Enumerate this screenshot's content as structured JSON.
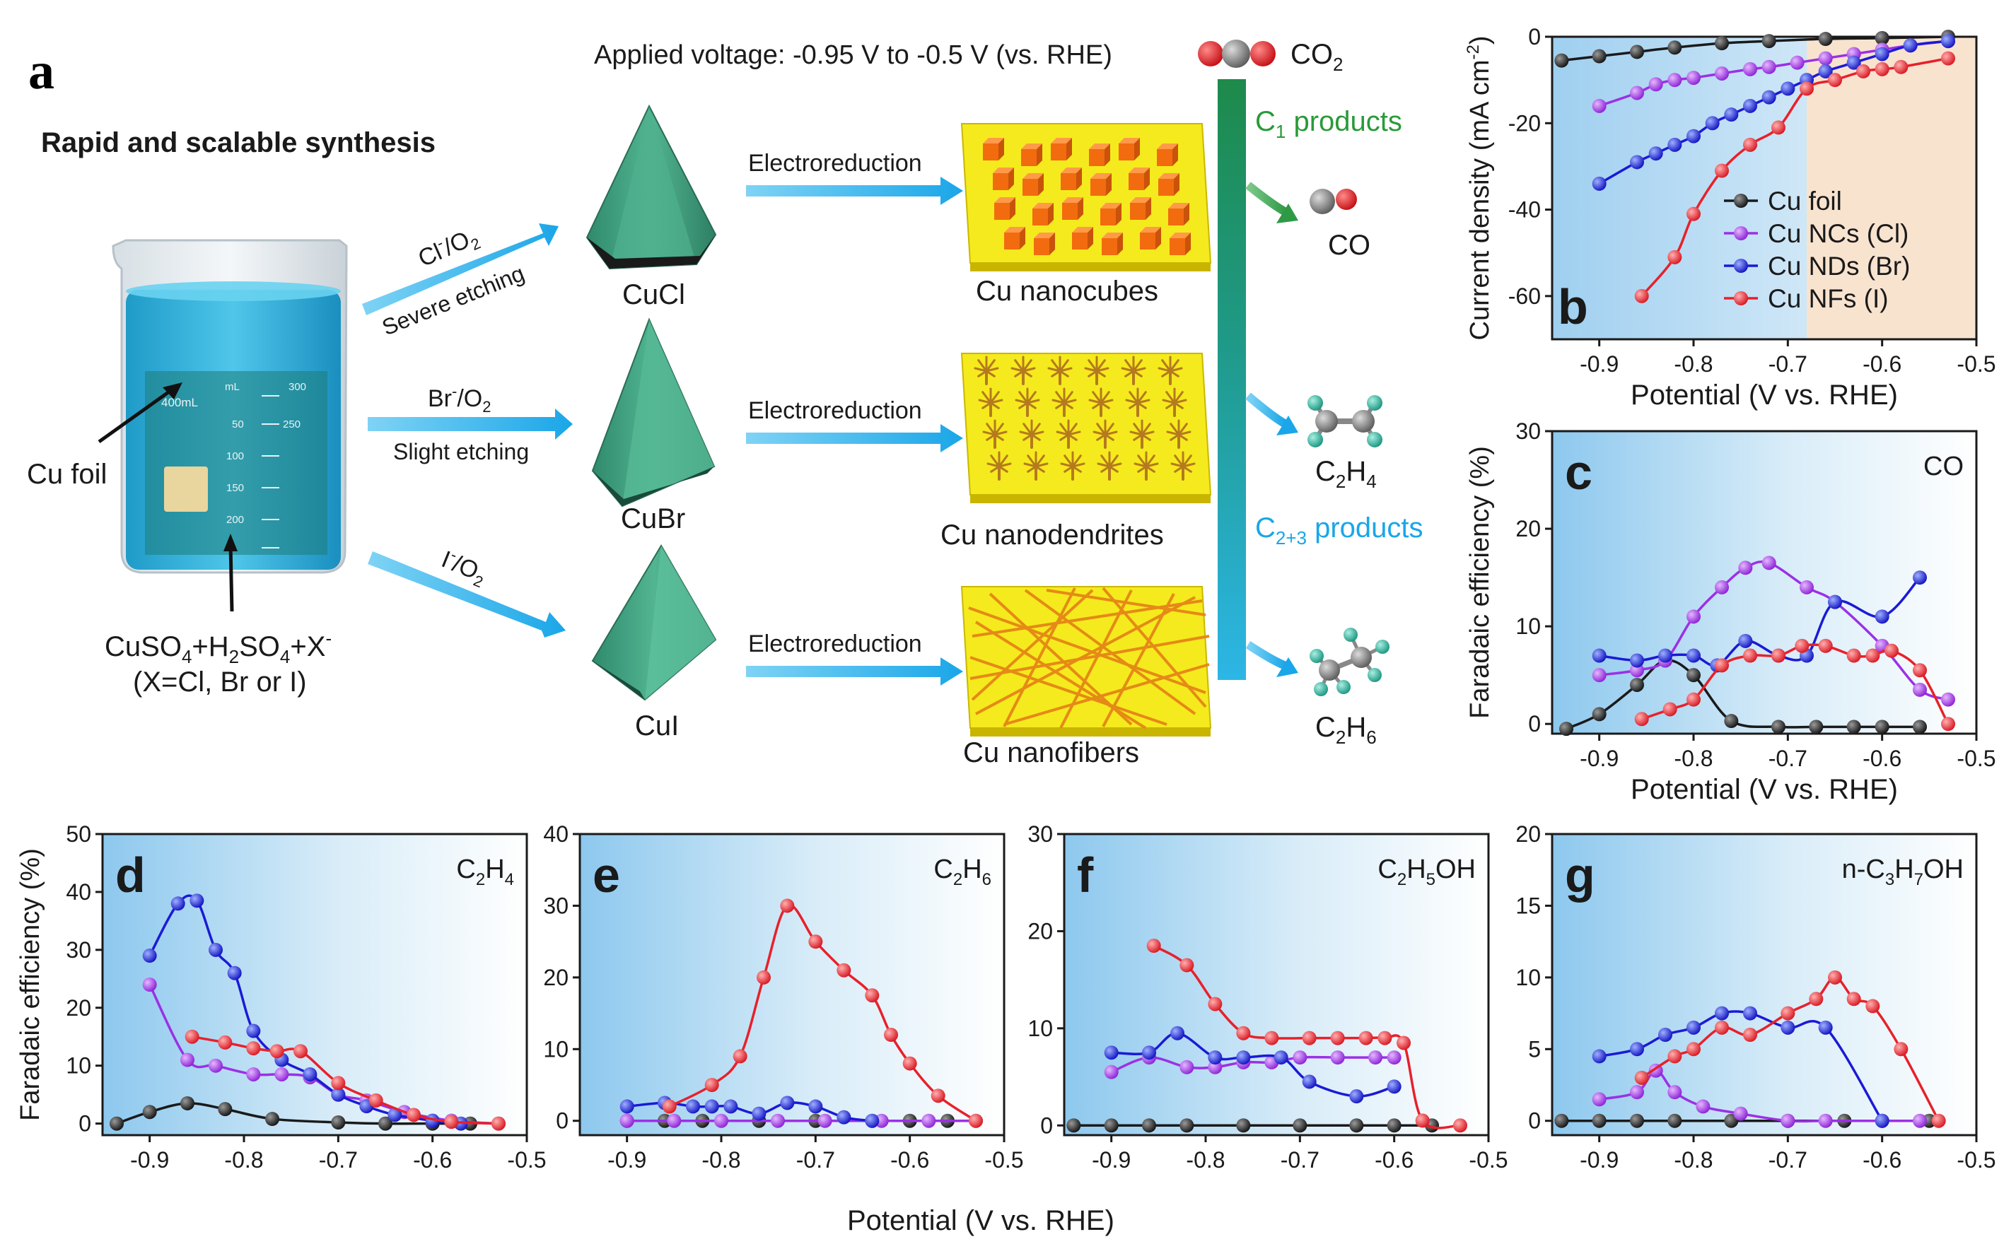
{
  "colors": {
    "black": "#1a1a1a",
    "purple": "#9b30e6",
    "blue": "#1a1ad6",
    "red": "#e8202a",
    "gradient_blue": "#9fcff0",
    "peach": "#f8e3cf",
    "arrow_blue": "#39b4ea",
    "crystal": "#45a585",
    "substrate": "#f5ea1d"
  },
  "panel_a": {
    "label": "a",
    "title": "Rapid and scalable synthesis",
    "applied_voltage": "Applied voltage: -0.95 V to -0.5 V (vs. RHE)",
    "co2_label": "CO",
    "co2_sub": "2",
    "c1_products": "C",
    "c1_sub": "1",
    "c1_suffix": " products",
    "c23_products": "C",
    "c23_sub": "2+3",
    "c23_suffix": " products",
    "cu_foil": "Cu foil",
    "electrolyte_line1": "CuSO",
    "electrolyte_4": "4",
    "electrolyte_plus1": "+H",
    "electrolyte_2": "2",
    "electrolyte_so": "SO",
    "electrolyte_4b": "4",
    "electrolyte_x": "+X",
    "electrolyte_minus": "-",
    "electrolyte_line2": "(X=Cl, Br or I)",
    "beaker_400": "400mL",
    "beaker_ml": "mL",
    "beaker_300": "300",
    "beaker_ticks": [
      "50",
      "100",
      "150",
      "200",
      "250"
    ],
    "routes": [
      {
        "ion": "Cl",
        "ion_sup": "-",
        "ion_suffix": "/O",
        "ion_sub": "2",
        "etching": "Severe etching",
        "precursor": "CuCl",
        "process": "Electroreduction",
        "product": "Cu nanocubes"
      },
      {
        "ion": "Br",
        "ion_sup": "-",
        "ion_suffix": "/O",
        "ion_sub": "2",
        "etching": "Slight etching",
        "precursor": "CuBr",
        "process": "Electroreduction",
        "product": "Cu nanodendrites"
      },
      {
        "ion": "I",
        "ion_sup": "-",
        "ion_suffix": "/O",
        "ion_sub": "2",
        "etching": "",
        "precursor": "CuI",
        "process": "Electroreduction",
        "product": "Cu nanofibers"
      }
    ],
    "products": [
      {
        "name": "CO",
        "sub": ""
      },
      {
        "name": "C",
        "sub": "2",
        "name2": "H",
        "sub2": "4"
      },
      {
        "name": "C",
        "sub": "2",
        "name2": "H",
        "sub2": "6"
      }
    ]
  },
  "chart_data": [
    {
      "panel": "b",
      "type": "line",
      "xlabel": "Potential (V vs. RHE)",
      "ylabel": "Current density (mA cm",
      "ylabel_sup": "-2",
      "ylabel_end": ")",
      "xlim": [
        -0.95,
        -0.5
      ],
      "ylim": [
        -70,
        0
      ],
      "xticks": [
        -0.9,
        -0.8,
        -0.7,
        -0.6,
        -0.5
      ],
      "xtick_labels": [
        "-0.9",
        "-0.8",
        "-0.7",
        "-0.6",
        "-0.5"
      ],
      "yticks": [
        -60,
        -40,
        -20,
        0
      ],
      "ytick_labels": [
        "-60",
        "-40",
        "-20",
        "0"
      ],
      "shade_split": -0.68,
      "series": [
        {
          "name": "Cu foil",
          "color": "black",
          "x": [
            -0.94,
            -0.9,
            -0.86,
            -0.82,
            -0.77,
            -0.72,
            -0.66,
            -0.6,
            -0.53
          ],
          "y": [
            -5.5,
            -4.5,
            -3.5,
            -2.5,
            -1.5,
            -1,
            -0.5,
            -0.3,
            0
          ]
        },
        {
          "name": "Cu NCs (Cl)",
          "color": "purple",
          "x": [
            -0.9,
            -0.86,
            -0.84,
            -0.82,
            -0.8,
            -0.77,
            -0.74,
            -0.72,
            -0.69,
            -0.66,
            -0.63,
            -0.6,
            -0.57,
            -0.53
          ],
          "y": [
            -16,
            -13,
            -11,
            -10,
            -9.5,
            -8.5,
            -7.5,
            -7,
            -6,
            -5,
            -4,
            -3,
            -2,
            -1
          ]
        },
        {
          "name": "Cu NDs (Br)",
          "color": "blue",
          "x": [
            -0.9,
            -0.86,
            -0.84,
            -0.82,
            -0.8,
            -0.78,
            -0.76,
            -0.74,
            -0.72,
            -0.7,
            -0.68,
            -0.66,
            -0.63,
            -0.6,
            -0.57,
            -0.53
          ],
          "y": [
            -34,
            -29,
            -27,
            -25,
            -23,
            -20,
            -18,
            -16,
            -14,
            -12,
            -10,
            -8,
            -6,
            -4,
            -2,
            -1
          ]
        },
        {
          "name": "Cu NFs (I)",
          "color": "red",
          "x": [
            -0.855,
            -0.82,
            -0.8,
            -0.77,
            -0.74,
            -0.71,
            -0.68,
            -0.65,
            -0.62,
            -0.6,
            -0.58,
            -0.53
          ],
          "y": [
            -60,
            -51,
            -41,
            -31,
            -25,
            -21,
            -12,
            -10,
            -8,
            -7.5,
            -7,
            -5
          ]
        }
      ]
    },
    {
      "panel": "c",
      "type": "line",
      "product": "CO",
      "xlabel": "Potential (V vs. RHE)",
      "ylabel": "Faradaic efficiency (%)",
      "xlim": [
        -0.95,
        -0.5
      ],
      "ylim": [
        -1,
        30
      ],
      "xticks": [
        -0.9,
        -0.8,
        -0.7,
        -0.6,
        -0.5
      ],
      "xtick_labels": [
        "-0.9",
        "-0.8",
        "-0.7",
        "-0.6",
        "-0.5"
      ],
      "yticks": [
        0,
        10,
        20,
        30
      ],
      "ytick_labels": [
        "0",
        "10",
        "20",
        "30"
      ],
      "series": [
        {
          "name": "Cu foil",
          "color": "black",
          "x": [
            -0.935,
            -0.9,
            -0.86,
            -0.83,
            -0.8,
            -0.76,
            -0.71,
            -0.67,
            -0.63,
            -0.6,
            -0.56
          ],
          "y": [
            -0.5,
            1,
            4,
            6.5,
            5,
            0.3,
            -0.3,
            -0.3,
            -0.3,
            -0.3,
            -0.3
          ]
        },
        {
          "name": "Cu NCs (Cl)",
          "color": "purple",
          "x": [
            -0.9,
            -0.86,
            -0.83,
            -0.8,
            -0.77,
            -0.745,
            -0.72,
            -0.68,
            -0.65,
            -0.6,
            -0.56,
            -0.53
          ],
          "y": [
            5,
            5.5,
            6.5,
            11,
            14,
            16,
            16.5,
            14,
            12.5,
            8,
            3.5,
            2.5
          ]
        },
        {
          "name": "Cu NDs (Br)",
          "color": "blue",
          "x": [
            -0.9,
            -0.86,
            -0.83,
            -0.8,
            -0.775,
            -0.745,
            -0.71,
            -0.68,
            -0.65,
            -0.6,
            -0.56
          ],
          "y": [
            7,
            6.5,
            7,
            7,
            6,
            8.5,
            7,
            7,
            12.5,
            11,
            15
          ]
        },
        {
          "name": "Cu NFs (I)",
          "color": "red",
          "x": [
            -0.855,
            -0.825,
            -0.8,
            -0.77,
            -0.74,
            -0.71,
            -0.685,
            -0.66,
            -0.63,
            -0.61,
            -0.59,
            -0.56,
            -0.53
          ],
          "y": [
            0.5,
            1.5,
            2.5,
            6,
            7,
            7,
            8,
            8,
            7,
            7,
            7.5,
            5.5,
            0
          ]
        }
      ]
    },
    {
      "panel": "d",
      "type": "line",
      "product": "C",
      "product_sub": "2",
      "product_mid": "H",
      "product_sub2": "4",
      "xlabel": "",
      "ylabel": "Faradaic efficiency (%)",
      "xlim": [
        -0.95,
        -0.5
      ],
      "ylim": [
        -2,
        50
      ],
      "xticks": [
        -0.9,
        -0.8,
        -0.7,
        -0.6,
        -0.5
      ],
      "xtick_labels": [
        "-0.9",
        "-0.8",
        "-0.7",
        "-0.6",
        "-0.5"
      ],
      "yticks": [
        0,
        10,
        20,
        30,
        40,
        50
      ],
      "ytick_labels": [
        "0",
        "10",
        "20",
        "30",
        "40",
        "50"
      ],
      "series": [
        {
          "name": "Cu foil",
          "color": "black",
          "x": [
            -0.935,
            -0.9,
            -0.86,
            -0.82,
            -0.77,
            -0.7,
            -0.65,
            -0.6,
            -0.56
          ],
          "y": [
            0,
            2,
            3.5,
            2.5,
            0.8,
            0.2,
            0,
            0,
            0
          ]
        },
        {
          "name": "Cu NCs (Cl)",
          "color": "purple",
          "x": [
            -0.9,
            -0.86,
            -0.83,
            -0.79,
            -0.76,
            -0.73,
            -0.7,
            -0.67,
            -0.63,
            -0.58,
            -0.53
          ],
          "y": [
            24,
            11,
            10,
            8.5,
            8.5,
            8,
            5,
            4,
            2,
            0.5,
            0
          ]
        },
        {
          "name": "Cu NDs (Br)",
          "color": "blue",
          "x": [
            -0.9,
            -0.87,
            -0.85,
            -0.83,
            -0.81,
            -0.79,
            -0.76,
            -0.73,
            -0.7,
            -0.67,
            -0.64,
            -0.6,
            -0.57
          ],
          "y": [
            29,
            38,
            38.5,
            30,
            26,
            16,
            11,
            8.5,
            5,
            3,
            1.5,
            0.5,
            0
          ]
        },
        {
          "name": "Cu NFs (I)",
          "color": "red",
          "x": [
            -0.855,
            -0.82,
            -0.79,
            -0.765,
            -0.74,
            -0.7,
            -0.66,
            -0.62,
            -0.58,
            -0.53
          ],
          "y": [
            15,
            14,
            13,
            12.5,
            12.5,
            7,
            4,
            1.5,
            0.3,
            0
          ]
        }
      ]
    },
    {
      "panel": "e",
      "type": "line",
      "product": "C",
      "product_sub": "2",
      "product_mid": "H",
      "product_sub2": "6",
      "xlabel": "",
      "ylabel": "",
      "xlim": [
        -0.95,
        -0.5
      ],
      "ylim": [
        -2,
        40
      ],
      "xticks": [
        -0.9,
        -0.8,
        -0.7,
        -0.6,
        -0.5
      ],
      "xtick_labels": [
        "-0.9",
        "-0.8",
        "-0.7",
        "-0.6",
        "-0.5"
      ],
      "yticks": [
        0,
        10,
        20,
        30,
        40
      ],
      "ytick_labels": [
        "0",
        "10",
        "20",
        "30",
        "40"
      ],
      "series": [
        {
          "name": "Cu foil",
          "color": "black",
          "x": [
            -0.9,
            -0.86,
            -0.82,
            -0.76,
            -0.7,
            -0.64,
            -0.6,
            -0.56
          ],
          "y": [
            0,
            0,
            0,
            0,
            0,
            0,
            0,
            0
          ]
        },
        {
          "name": "Cu NCs (Cl)",
          "color": "purple",
          "x": [
            -0.9,
            -0.85,
            -0.8,
            -0.74,
            -0.69,
            -0.63,
            -0.58,
            -0.53
          ],
          "y": [
            0,
            0,
            0,
            0,
            0,
            0,
            0,
            0
          ]
        },
        {
          "name": "Cu NDs (Br)",
          "color": "blue",
          "x": [
            -0.9,
            -0.86,
            -0.83,
            -0.81,
            -0.79,
            -0.76,
            -0.73,
            -0.7,
            -0.67,
            -0.64
          ],
          "y": [
            2,
            2.5,
            2,
            2,
            2,
            1,
            2.5,
            2,
            0.5,
            0
          ]
        },
        {
          "name": "Cu NFs (I)",
          "color": "red",
          "x": [
            -0.855,
            -0.81,
            -0.78,
            -0.755,
            -0.73,
            -0.7,
            -0.67,
            -0.64,
            -0.62,
            -0.6,
            -0.57,
            -0.53
          ],
          "y": [
            2,
            5,
            9,
            20,
            30,
            25,
            21,
            17.5,
            12,
            8,
            3.5,
            0
          ]
        }
      ]
    },
    {
      "panel": "f",
      "type": "line",
      "product": "C",
      "product_sub": "2",
      "product_mid": "H",
      "product_sub2": "5",
      "product_end": "OH",
      "xlabel": "",
      "ylabel": "",
      "xlim": [
        -0.95,
        -0.5
      ],
      "ylim": [
        -1,
        30
      ],
      "xticks": [
        -0.9,
        -0.8,
        -0.7,
        -0.6,
        -0.5
      ],
      "xtick_labels": [
        "-0.9",
        "-0.8",
        "-0.7",
        "-0.6",
        "-0.5"
      ],
      "yticks": [
        0,
        10,
        20,
        30
      ],
      "ytick_labels": [
        "0",
        "10",
        "20",
        "30"
      ],
      "series": [
        {
          "name": "Cu foil",
          "color": "black",
          "x": [
            -0.94,
            -0.9,
            -0.86,
            -0.82,
            -0.76,
            -0.7,
            -0.64,
            -0.6,
            -0.56
          ],
          "y": [
            0,
            0,
            0,
            0,
            0,
            0,
            0,
            0,
            0
          ]
        },
        {
          "name": "Cu NCs (Cl)",
          "color": "purple",
          "x": [
            -0.9,
            -0.86,
            -0.82,
            -0.79,
            -0.76,
            -0.73,
            -0.7,
            -0.66,
            -0.62,
            -0.6
          ],
          "y": [
            5.5,
            7,
            6,
            6,
            6.5,
            6.5,
            7,
            7,
            7,
            7
          ]
        },
        {
          "name": "Cu NDs (Br)",
          "color": "blue",
          "x": [
            -0.9,
            -0.86,
            -0.83,
            -0.79,
            -0.76,
            -0.72,
            -0.69,
            -0.64,
            -0.6
          ],
          "y": [
            7.5,
            7.5,
            9.5,
            7,
            7,
            7,
            4.5,
            3,
            4
          ]
        },
        {
          "name": "Cu NFs (I)",
          "color": "red",
          "x": [
            -0.855,
            -0.82,
            -0.79,
            -0.76,
            -0.73,
            -0.69,
            -0.66,
            -0.63,
            -0.61,
            -0.59,
            -0.57,
            -0.53
          ],
          "y": [
            18.5,
            16.5,
            12.5,
            9.5,
            9,
            9,
            9,
            9,
            9,
            8.5,
            0.5,
            0
          ]
        }
      ]
    },
    {
      "panel": "g",
      "type": "line",
      "product": "n-C",
      "product_sub": "3",
      "product_mid": "H",
      "product_sub2": "7",
      "product_end": "OH",
      "xlabel": "",
      "ylabel": "",
      "xlim": [
        -0.95,
        -0.5
      ],
      "ylim": [
        -1,
        20
      ],
      "xticks": [
        -0.9,
        -0.8,
        -0.7,
        -0.6,
        -0.5
      ],
      "xtick_labels": [
        "-0.9",
        "-0.8",
        "-0.7",
        "-0.6",
        "-0.5"
      ],
      "yticks": [
        0,
        5,
        10,
        15,
        20
      ],
      "ytick_labels": [
        "0",
        "5",
        "10",
        "15",
        "20"
      ],
      "series": [
        {
          "name": "Cu foil",
          "color": "black",
          "x": [
            -0.94,
            -0.9,
            -0.86,
            -0.82,
            -0.76,
            -0.7,
            -0.64,
            -0.6,
            -0.55
          ],
          "y": [
            0,
            0,
            0,
            0,
            0,
            0,
            0,
            0,
            0
          ]
        },
        {
          "name": "Cu NCs (Cl)",
          "color": "purple",
          "x": [
            -0.9,
            -0.86,
            -0.84,
            -0.82,
            -0.79,
            -0.75,
            -0.7,
            -0.66,
            -0.6,
            -0.56
          ],
          "y": [
            1.5,
            2,
            3.5,
            2,
            1,
            0.5,
            0,
            0,
            0,
            0
          ]
        },
        {
          "name": "Cu NDs (Br)",
          "color": "blue",
          "x": [
            -0.9,
            -0.86,
            -0.83,
            -0.8,
            -0.77,
            -0.74,
            -0.7,
            -0.66,
            -0.6
          ],
          "y": [
            4.5,
            5,
            6,
            6.5,
            7.5,
            7.5,
            6.5,
            6.5,
            0
          ]
        },
        {
          "name": "Cu NFs (I)",
          "color": "red",
          "x": [
            -0.855,
            -0.82,
            -0.8,
            -0.77,
            -0.74,
            -0.7,
            -0.67,
            -0.65,
            -0.63,
            -0.61,
            -0.58,
            -0.54
          ],
          "y": [
            3,
            4.5,
            5,
            6.5,
            6,
            7.5,
            8.5,
            10,
            8.5,
            8,
            5,
            0
          ]
        }
      ]
    }
  ],
  "panel_labels": {
    "b": "b",
    "c": "c",
    "d": "d",
    "e": "e",
    "f": "f",
    "g": "g"
  },
  "bottom_xlabel": "Potential (V vs. RHE)"
}
